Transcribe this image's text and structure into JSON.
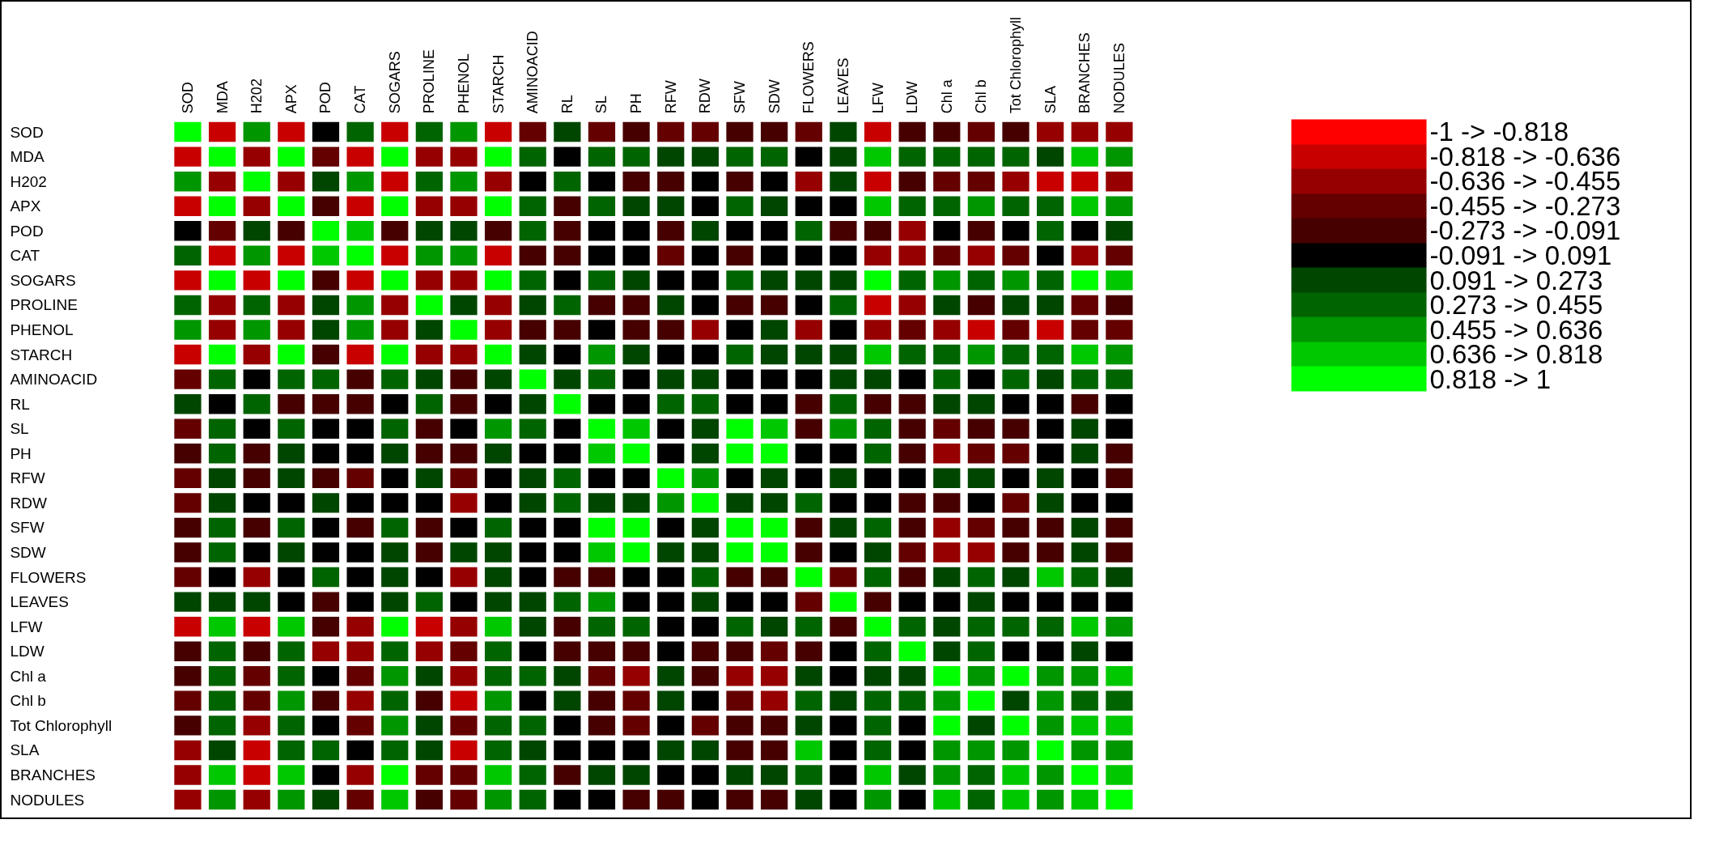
{
  "chart_data": {
    "type": "heatmap",
    "categories": [
      "SOD",
      "MDA",
      "H202",
      "APX",
      "POD",
      "CAT",
      "SOGARS",
      "PROLINE",
      "PHENOL",
      "STARCH",
      "AMINOACID",
      "RL",
      "SL",
      "PH",
      "RFW",
      "RDW",
      "SFW",
      "SDW",
      "FLOWERS",
      "LEAVES",
      "LFW",
      "LDW",
      "Chl a",
      "Chl b",
      "Tot Chlorophyll",
      "SLA",
      "BRANCHES",
      "NODULES"
    ],
    "y_categories": [
      "SOD",
      "MDA",
      "H202",
      "APX",
      "POD",
      "CAT",
      "SOGARS",
      "PROLINE",
      "PHENOL",
      "STARCH",
      "AMINOACID",
      "RL",
      "SL",
      "PH",
      "RFW",
      "RDW",
      "SFW",
      "SDW",
      "FLOWERS",
      "LEAVES",
      "LFW",
      "LDW",
      "Chl a",
      "Chl b",
      "Tot Chlorophyll",
      "SLA",
      "BRANCHES",
      "NODULES"
    ],
    "cells": [
      [
        0.91,
        -0.73,
        0.55,
        -0.73,
        0,
        0.36,
        -0.73,
        0.36,
        0.55,
        -0.73,
        -0.36,
        0.18,
        -0.36,
        -0.18,
        -0.36,
        -0.36,
        -0.18,
        -0.18,
        -0.36,
        0.18,
        -0.73,
        -0.18,
        -0.18,
        -0.36,
        -0.18,
        -0.55,
        -0.55,
        -0.55
      ],
      [
        -0.73,
        0.91,
        -0.55,
        0.91,
        -0.36,
        -0.73,
        0.91,
        -0.55,
        -0.55,
        0.91,
        0.36,
        0,
        0.36,
        0.36,
        0.18,
        0.18,
        0.36,
        0.36,
        0,
        0.18,
        0.73,
        0.36,
        0.36,
        0.36,
        0.36,
        0.18,
        0.73,
        0.55
      ],
      [
        0.55,
        -0.55,
        0.91,
        -0.55,
        0.18,
        0.55,
        -0.73,
        0.36,
        0.55,
        -0.55,
        0,
        0.36,
        0,
        -0.18,
        -0.18,
        0,
        -0.18,
        0,
        -0.55,
        0.18,
        -0.73,
        -0.18,
        -0.36,
        -0.36,
        -0.55,
        -0.73,
        -0.73,
        -0.55
      ],
      [
        -0.73,
        0.91,
        -0.55,
        0.91,
        -0.18,
        -0.73,
        0.91,
        -0.55,
        -0.55,
        0.91,
        0.36,
        -0.18,
        0.36,
        0.18,
        0.18,
        0,
        0.36,
        0.18,
        0,
        0,
        0.73,
        0.36,
        0.36,
        0.55,
        0.36,
        0.36,
        0.73,
        0.55
      ],
      [
        0,
        -0.36,
        0.18,
        -0.18,
        0.91,
        0.73,
        -0.18,
        0.18,
        0.18,
        -0.18,
        0.36,
        -0.18,
        0,
        0,
        -0.18,
        0.18,
        0,
        0,
        0.36,
        -0.18,
        -0.18,
        -0.55,
        0,
        -0.18,
        0,
        0.36,
        0,
        0.18
      ],
      [
        0.36,
        -0.73,
        0.55,
        -0.73,
        0.73,
        0.91,
        -0.73,
        0.55,
        0.55,
        -0.73,
        -0.18,
        -0.18,
        0,
        0,
        -0.36,
        0,
        -0.18,
        0,
        0,
        0,
        -0.55,
        -0.55,
        -0.36,
        -0.55,
        -0.36,
        0,
        -0.55,
        -0.36
      ],
      [
        -0.73,
        0.91,
        -0.73,
        0.91,
        -0.18,
        -0.73,
        0.91,
        -0.55,
        -0.55,
        0.91,
        0.36,
        0,
        0.36,
        0.18,
        0,
        0,
        0.36,
        0.18,
        0.18,
        0.18,
        0.91,
        0.36,
        0.55,
        0.36,
        0.55,
        0.36,
        0.91,
        0.73
      ],
      [
        0.36,
        -0.55,
        0.36,
        -0.55,
        0.18,
        0.55,
        -0.55,
        0.91,
        0.18,
        -0.55,
        0.18,
        0.36,
        -0.18,
        -0.18,
        0.18,
        0,
        -0.18,
        -0.18,
        0,
        0.36,
        -0.73,
        -0.55,
        0.18,
        -0.18,
        0.18,
        0.18,
        -0.36,
        -0.18
      ],
      [
        0.55,
        -0.55,
        0.55,
        -0.55,
        0.18,
        0.55,
        -0.55,
        0.18,
        0.91,
        -0.55,
        -0.18,
        -0.18,
        0,
        -0.18,
        -0.18,
        -0.55,
        0,
        0.18,
        -0.55,
        0,
        -0.55,
        -0.36,
        -0.55,
        -0.73,
        -0.36,
        -0.73,
        -0.36,
        -0.36
      ],
      [
        -0.73,
        0.91,
        -0.55,
        0.91,
        -0.18,
        -0.73,
        0.91,
        -0.55,
        -0.55,
        0.91,
        0.18,
        0,
        0.55,
        0.18,
        0,
        0,
        0.36,
        0.18,
        0.18,
        0.18,
        0.73,
        0.36,
        0.36,
        0.55,
        0.36,
        0.36,
        0.73,
        0.55
      ],
      [
        -0.36,
        0.36,
        0,
        0.36,
        0.36,
        -0.18,
        0.36,
        0.18,
        -0.18,
        0.18,
        0.91,
        0.18,
        0.36,
        0,
        0.18,
        0.18,
        0,
        0,
        0,
        0.18,
        0.18,
        0,
        0.36,
        0,
        0.36,
        0.18,
        0.36,
        0.36
      ],
      [
        0.18,
        0,
        0.36,
        -0.18,
        -0.18,
        -0.18,
        0,
        0.36,
        -0.18,
        0,
        0.18,
        0.91,
        0,
        0,
        0.36,
        0.36,
        0,
        0,
        -0.18,
        0.36,
        -0.18,
        -0.18,
        0.18,
        0.18,
        0,
        0,
        -0.18,
        0
      ],
      [
        -0.36,
        0.36,
        0,
        0.36,
        0,
        0,
        0.36,
        -0.18,
        0,
        0.55,
        0.36,
        0,
        0.91,
        0.73,
        0,
        0.18,
        0.91,
        0.73,
        -0.18,
        0.55,
        0.36,
        -0.18,
        -0.36,
        -0.18,
        -0.18,
        0,
        0.18,
        0
      ],
      [
        -0.18,
        0.36,
        -0.18,
        0.18,
        0,
        0,
        0.18,
        -0.18,
        -0.18,
        0.18,
        0,
        0,
        0.73,
        0.91,
        0,
        0.18,
        0.91,
        0.91,
        0,
        0,
        0.36,
        -0.18,
        -0.55,
        -0.36,
        -0.36,
        0,
        0.18,
        -0.18
      ],
      [
        -0.36,
        0.18,
        -0.18,
        0.18,
        -0.18,
        -0.36,
        0,
        0.18,
        -0.36,
        0,
        0.18,
        0.36,
        0,
        0,
        0.91,
        0.55,
        0,
        0.18,
        0,
        0.18,
        0,
        0,
        0.18,
        0.18,
        0,
        0.18,
        0,
        -0.18
      ],
      [
        -0.36,
        0.18,
        0,
        0,
        0.18,
        0,
        0,
        0,
        -0.55,
        0,
        0.18,
        0.36,
        0.18,
        0.18,
        0.55,
        0.91,
        0.18,
        0.18,
        0.36,
        0,
        0,
        -0.18,
        -0.18,
        0,
        -0.36,
        0.18,
        0,
        0
      ],
      [
        -0.18,
        0.36,
        -0.18,
        0.36,
        0,
        -0.18,
        0.36,
        -0.18,
        0,
        0.36,
        0,
        0,
        0.91,
        0.91,
        0,
        0.18,
        0.91,
        0.91,
        -0.18,
        0.18,
        0.36,
        -0.18,
        -0.55,
        -0.36,
        -0.18,
        -0.18,
        0.18,
        -0.18
      ],
      [
        -0.18,
        0.36,
        0,
        0.18,
        0,
        0,
        0.18,
        -0.18,
        0.18,
        0.18,
        0,
        0,
        0.73,
        0.91,
        0.18,
        0.18,
        0.91,
        0.91,
        -0.18,
        0,
        0.18,
        -0.36,
        -0.55,
        -0.55,
        -0.18,
        -0.18,
        0.18,
        -0.18
      ],
      [
        -0.36,
        0,
        -0.55,
        0,
        0.36,
        0,
        0.18,
        0,
        -0.55,
        0.18,
        0,
        -0.18,
        -0.18,
        0,
        0,
        0.36,
        -0.18,
        -0.18,
        0.91,
        -0.36,
        0.36,
        -0.18,
        0.18,
        0.36,
        0.18,
        0.73,
        0.36,
        0.18
      ],
      [
        0.18,
        0.18,
        0.18,
        0,
        -0.18,
        0,
        0.18,
        0.36,
        0,
        0.18,
        0.18,
        0.36,
        0.55,
        0,
        0,
        0.18,
        0,
        0,
        -0.36,
        0.91,
        -0.18,
        0,
        0,
        0.18,
        0,
        0,
        0,
        0
      ],
      [
        -0.73,
        0.73,
        -0.73,
        0.73,
        -0.18,
        -0.55,
        0.91,
        -0.73,
        -0.55,
        0.73,
        0.18,
        -0.18,
        0.36,
        0.36,
        0,
        0,
        0.36,
        0.18,
        0.36,
        -0.18,
        0.91,
        0.36,
        0.18,
        0.36,
        0.36,
        0.36,
        0.73,
        0.55
      ],
      [
        -0.18,
        0.36,
        -0.18,
        0.36,
        -0.55,
        -0.55,
        0.36,
        -0.55,
        -0.36,
        0.36,
        0,
        -0.18,
        -0.18,
        -0.18,
        0,
        -0.18,
        -0.18,
        -0.36,
        -0.18,
        0,
        0.36,
        0.91,
        0.18,
        0.36,
        0,
        0,
        0.18,
        0
      ],
      [
        -0.18,
        0.36,
        -0.36,
        0.36,
        0,
        -0.36,
        0.55,
        0.18,
        -0.55,
        0.36,
        0.36,
        0.18,
        -0.36,
        -0.55,
        0.18,
        -0.18,
        -0.55,
        -0.55,
        0.18,
        0,
        0.18,
        0.18,
        0.91,
        0.55,
        0.91,
        0.55,
        0.55,
        0.73
      ],
      [
        -0.36,
        0.36,
        -0.36,
        0.55,
        -0.18,
        -0.55,
        0.36,
        -0.18,
        -0.73,
        0.55,
        0,
        0.18,
        -0.18,
        -0.36,
        0.18,
        0,
        -0.36,
        -0.55,
        0.36,
        0.18,
        0.36,
        0.36,
        0.55,
        0.91,
        0.18,
        0.55,
        0.36,
        0.36
      ],
      [
        -0.18,
        0.36,
        -0.55,
        0.36,
        0,
        -0.36,
        0.55,
        0.18,
        -0.36,
        0.36,
        0.36,
        0,
        -0.18,
        -0.36,
        0,
        -0.36,
        -0.18,
        -0.18,
        0.18,
        0,
        0.36,
        0,
        0.91,
        0.18,
        0.91,
        0.55,
        0.73,
        0.73
      ],
      [
        -0.55,
        0.18,
        -0.73,
        0.36,
        0.36,
        0,
        0.36,
        0.18,
        -0.73,
        0.36,
        0.18,
        0,
        0,
        0,
        0.18,
        0.18,
        -0.18,
        -0.18,
        0.73,
        0,
        0.36,
        0,
        0.55,
        0.55,
        0.55,
        0.91,
        0.55,
        0.55
      ],
      [
        -0.55,
        0.73,
        -0.73,
        0.73,
        0,
        -0.55,
        0.91,
        -0.36,
        -0.36,
        0.73,
        0.36,
        -0.18,
        0.18,
        0.18,
        0,
        0,
        0.18,
        0.18,
        0.36,
        0,
        0.73,
        0.18,
        0.55,
        0.36,
        0.73,
        0.55,
        0.91,
        0.73
      ],
      [
        -0.55,
        0.55,
        -0.55,
        0.55,
        0.18,
        -0.36,
        0.73,
        -0.18,
        -0.36,
        0.55,
        0.36,
        0,
        0,
        -0.18,
        -0.18,
        0,
        -0.18,
        -0.18,
        0.18,
        0,
        0.55,
        0,
        0.73,
        0.36,
        0.73,
        0.55,
        0.73,
        0.91
      ]
    ],
    "clim": [
      -1,
      1
    ],
    "colors": [
      "#ff0000",
      "#c80000",
      "#960000",
      "#640000",
      "#460000",
      "#000000",
      "#004600",
      "#006400",
      "#009600",
      "#00c800",
      "#00ff00"
    ],
    "cticks": [
      {
        "value": -0.909,
        "label": "-1 -> -0.818"
      },
      {
        "value": -0.727,
        "label": "-0.818 -> -0.636"
      },
      {
        "value": -0.545,
        "label": "-0.636 -> -0.455"
      },
      {
        "value": -0.364,
        "label": "-0.455 -> -0.273"
      },
      {
        "value": -0.182,
        "label": "-0.273 -> -0.091"
      },
      {
        "value": 0,
        "label": "-0.091 -> 0.091"
      },
      {
        "value": 0.182,
        "label": "0.091 -> 0.273"
      },
      {
        "value": 0.364,
        "label": "0.273 -> 0.455"
      },
      {
        "value": 0.545,
        "label": "0.455 -> 0.636"
      },
      {
        "value": 0.727,
        "label": "0.636 -> 0.818"
      },
      {
        "value": 0.909,
        "label": "0.818 -> 1"
      }
    ]
  }
}
